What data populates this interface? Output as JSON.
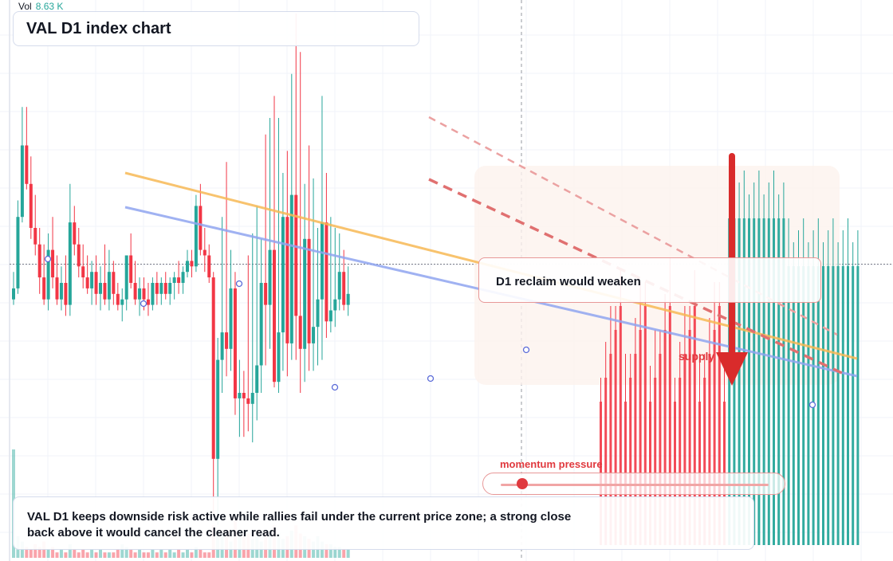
{
  "header": {
    "vol_label": "Vol",
    "vol_value": "8.63 K",
    "title": "VAL D1 index chart"
  },
  "annotations": {
    "note": "D1 reclaim would weaken",
    "supply_label": "supply",
    "momentum_label": "momentum pressure",
    "summary": "VAL D1 keeps downside risk active while rallies fail under the current price zone; a strong close back above it would cancel the cleaner read."
  },
  "momentum": {
    "level": 0.08
  },
  "colors": {
    "up": "#26a69a",
    "down": "#f23645",
    "accent": "#e0393e",
    "trend_orange": "#f7b955",
    "trend_blue": "#8fa5f0",
    "card_border": "#d5dcec"
  },
  "chart_data": {
    "type": "candlestick",
    "symbol": "VAL",
    "timeframe": "D1",
    "ylim": [
      0,
      100
    ],
    "current_price": 53.4,
    "candles": [
      {
        "o": 47,
        "h": 52,
        "l": 46,
        "c": 49
      },
      {
        "o": 49,
        "h": 65,
        "l": 48,
        "c": 62
      },
      {
        "o": 62,
        "h": 82,
        "l": 61,
        "c": 75
      },
      {
        "o": 75,
        "h": 82,
        "l": 67,
        "c": 68
      },
      {
        "o": 68,
        "h": 73,
        "l": 58,
        "c": 60
      },
      {
        "o": 60,
        "h": 66,
        "l": 55,
        "c": 57
      },
      {
        "o": 57,
        "h": 60,
        "l": 48,
        "c": 51
      },
      {
        "o": 51,
        "h": 57,
        "l": 46,
        "c": 47
      },
      {
        "o": 47,
        "h": 59,
        "l": 45,
        "c": 56
      },
      {
        "o": 56,
        "h": 62,
        "l": 49,
        "c": 51
      },
      {
        "o": 51,
        "h": 55,
        "l": 46,
        "c": 47
      },
      {
        "o": 47,
        "h": 53,
        "l": 45,
        "c": 50
      },
      {
        "o": 50,
        "h": 55,
        "l": 44,
        "c": 46
      },
      {
        "o": 46,
        "h": 68,
        "l": 44,
        "c": 61
      },
      {
        "o": 61,
        "h": 64,
        "l": 55,
        "c": 57
      },
      {
        "o": 57,
        "h": 60,
        "l": 51,
        "c": 53
      },
      {
        "o": 53,
        "h": 57,
        "l": 49,
        "c": 51
      },
      {
        "o": 51,
        "h": 55,
        "l": 48,
        "c": 49
      },
      {
        "o": 49,
        "h": 54,
        "l": 46,
        "c": 52
      },
      {
        "o": 52,
        "h": 55,
        "l": 46,
        "c": 48
      },
      {
        "o": 48,
        "h": 53,
        "l": 45,
        "c": 50
      },
      {
        "o": 50,
        "h": 57,
        "l": 46,
        "c": 47
      },
      {
        "o": 47,
        "h": 56,
        "l": 45,
        "c": 52
      },
      {
        "o": 52,
        "h": 54,
        "l": 46,
        "c": 48
      },
      {
        "o": 48,
        "h": 50,
        "l": 45,
        "c": 46
      },
      {
        "o": 46,
        "h": 49,
        "l": 43,
        "c": 47
      },
      {
        "o": 47,
        "h": 55,
        "l": 45,
        "c": 55
      },
      {
        "o": 55,
        "h": 59,
        "l": 49,
        "c": 50
      },
      {
        "o": 50,
        "h": 54,
        "l": 46,
        "c": 47
      },
      {
        "o": 47,
        "h": 51,
        "l": 44,
        "c": 49
      },
      {
        "o": 49,
        "h": 51,
        "l": 45,
        "c": 47
      },
      {
        "o": 47,
        "h": 50,
        "l": 44,
        "c": 46
      },
      {
        "o": 46,
        "h": 51,
        "l": 45,
        "c": 50
      },
      {
        "o": 50,
        "h": 52,
        "l": 46,
        "c": 48
      },
      {
        "o": 48,
        "h": 51,
        "l": 46,
        "c": 50
      },
      {
        "o": 50,
        "h": 52,
        "l": 47,
        "c": 48
      },
      {
        "o": 48,
        "h": 51,
        "l": 46,
        "c": 50
      },
      {
        "o": 50,
        "h": 52,
        "l": 47,
        "c": 51
      },
      {
        "o": 51,
        "h": 54,
        "l": 48,
        "c": 50
      },
      {
        "o": 50,
        "h": 53,
        "l": 48,
        "c": 52
      },
      {
        "o": 52,
        "h": 56,
        "l": 51,
        "c": 54
      },
      {
        "o": 54,
        "h": 56,
        "l": 51,
        "c": 53
      },
      {
        "o": 53,
        "h": 66,
        "l": 52,
        "c": 64
      },
      {
        "o": 64,
        "h": 68,
        "l": 55,
        "c": 56
      },
      {
        "o": 56,
        "h": 60,
        "l": 52,
        "c": 55
      },
      {
        "o": 55,
        "h": 57,
        "l": 50,
        "c": 51
      },
      {
        "o": 51,
        "h": 52,
        "l": 8,
        "c": 18
      },
      {
        "o": 18,
        "h": 40,
        "l": 6,
        "c": 36
      },
      {
        "o": 36,
        "h": 62,
        "l": 30,
        "c": 41
      },
      {
        "o": 41,
        "h": 72,
        "l": 33,
        "c": 38
      },
      {
        "o": 38,
        "h": 56,
        "l": 34,
        "c": 49
      },
      {
        "o": 49,
        "h": 52,
        "l": 26,
        "c": 29
      },
      {
        "o": 29,
        "h": 36,
        "l": 22,
        "c": 30
      },
      {
        "o": 30,
        "h": 34,
        "l": 22,
        "c": 29
      },
      {
        "o": 29,
        "h": 55,
        "l": 23,
        "c": 28
      },
      {
        "o": 28,
        "h": 59,
        "l": 21,
        "c": 30
      },
      {
        "o": 30,
        "h": 64,
        "l": 25,
        "c": 35
      },
      {
        "o": 35,
        "h": 58,
        "l": 30,
        "c": 50
      },
      {
        "o": 50,
        "h": 77,
        "l": 35,
        "c": 46
      },
      {
        "o": 46,
        "h": 80,
        "l": 38,
        "c": 56
      },
      {
        "o": 56,
        "h": 84,
        "l": 31,
        "c": 32
      },
      {
        "o": 32,
        "h": 80,
        "l": 30,
        "c": 41
      },
      {
        "o": 41,
        "h": 70,
        "l": 34,
        "c": 62
      },
      {
        "o": 62,
        "h": 74,
        "l": 33,
        "c": 39
      },
      {
        "o": 39,
        "h": 88,
        "l": 36,
        "c": 66
      },
      {
        "o": 66,
        "h": 99,
        "l": 36,
        "c": 44
      },
      {
        "o": 44,
        "h": 92,
        "l": 30,
        "c": 38
      },
      {
        "o": 38,
        "h": 68,
        "l": 32,
        "c": 58
      },
      {
        "o": 58,
        "h": 75,
        "l": 34,
        "c": 39
      },
      {
        "o": 39,
        "h": 69,
        "l": 34,
        "c": 42
      },
      {
        "o": 42,
        "h": 60,
        "l": 35,
        "c": 47
      },
      {
        "o": 47,
        "h": 84,
        "l": 36,
        "c": 61
      },
      {
        "o": 61,
        "h": 70,
        "l": 40,
        "c": 43
      },
      {
        "o": 43,
        "h": 62,
        "l": 41,
        "c": 45
      },
      {
        "o": 45,
        "h": 60,
        "l": 42,
        "c": 47
      },
      {
        "o": 47,
        "h": 59,
        "l": 45,
        "c": 52
      },
      {
        "o": 52,
        "h": 56,
        "l": 45,
        "c": 46
      },
      {
        "o": 46,
        "h": 53,
        "l": 44,
        "c": 48
      }
    ],
    "candles_tail": "the most recent bars fade under the tall volume histogram",
    "trendlines": [
      {
        "name": "",
        "color": "orange",
        "from": [
          2,
          58
        ],
        "to": [
          58,
          35
        ]
      },
      {
        "name": "",
        "color": "blue",
        "from": [
          2,
          54
        ],
        "to": [
          58,
          32
        ]
      }
    ]
  }
}
